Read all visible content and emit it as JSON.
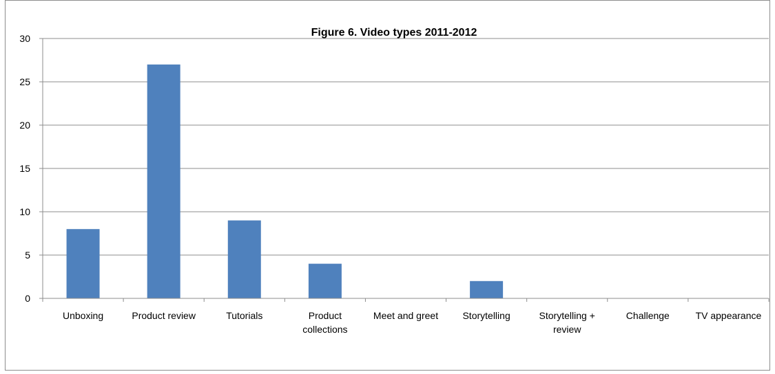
{
  "chart_data": {
    "type": "bar",
    "title": "Figure 6. Video types 2011-2012",
    "xlabel": "",
    "ylabel": "",
    "categories": [
      "Unboxing",
      "Product review",
      "Tutorials",
      "Product collections",
      "Meet and greet",
      "Storytelling",
      "Storytelling + review",
      "Challenge",
      "TV appearance"
    ],
    "category_label_lines": [
      [
        "Unboxing"
      ],
      [
        "Product review"
      ],
      [
        "Tutorials"
      ],
      [
        "Product",
        "collections"
      ],
      [
        "Meet and greet"
      ],
      [
        "Storytelling"
      ],
      [
        "Storytelling +",
        "review"
      ],
      [
        "Challenge"
      ],
      [
        "TV appearance"
      ]
    ],
    "values": [
      8,
      27,
      9,
      4,
      0,
      2,
      0,
      0,
      0
    ],
    "ylim": [
      0,
      30
    ],
    "yticks": [
      0,
      5,
      10,
      15,
      20,
      25,
      30
    ],
    "grid": true,
    "legend": "none",
    "bar_color": "#4f81bd",
    "grid_color": "#8c8c8c",
    "axis_color": "#8c8c8c",
    "border_color": "#8c8c8c"
  }
}
